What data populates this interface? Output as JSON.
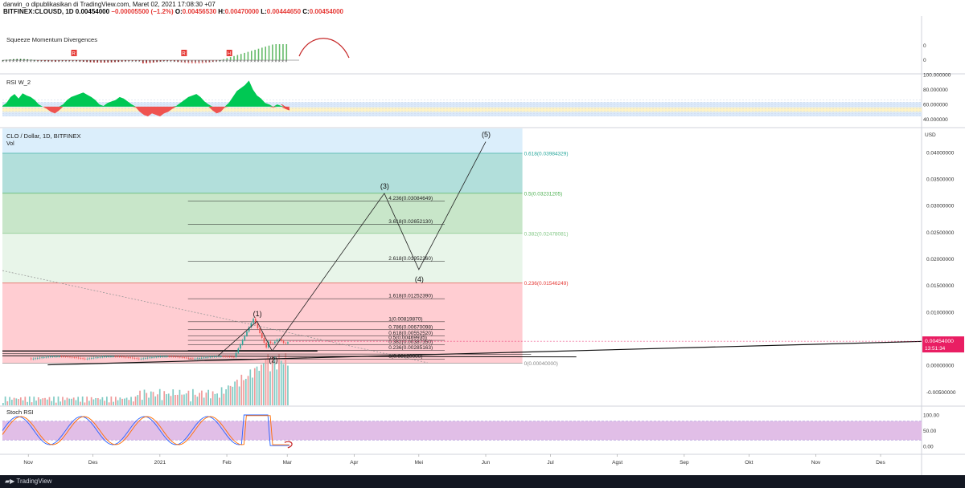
{
  "header": {
    "line1": "darwin_o dipublikasikan di TradingView.com, Maret 02, 2021 17:08:30 +07",
    "symbol": "BITFINEX:CLOUSD, 1D",
    "ohlc": [
      {
        "k": "0.00454000",
        "c": "#000"
      },
      {
        "k": " −0.00005500 (−1.2%)",
        "c": "#e53935"
      },
      {
        "k": " O:",
        "c": "#000"
      },
      {
        "k": "0.00456530",
        "c": "#e53935"
      },
      {
        "k": " H:",
        "c": "#000"
      },
      {
        "k": "0.00470000",
        "c": "#e53935"
      },
      {
        "k": " L:",
        "c": "#000"
      },
      {
        "k": "0.00444650",
        "c": "#e53935"
      },
      {
        "k": " C:",
        "c": "#000"
      },
      {
        "k": "0.00454000",
        "c": "#e53935"
      }
    ]
  },
  "footer": {
    "brand": "TradingView"
  },
  "panes": {
    "squeeze": {
      "title": "Squeeze Momentum Divergences",
      "axis": [
        "0",
        "0"
      ],
      "markers": [
        "R",
        "R",
        "H"
      ]
    },
    "rsi": {
      "title": "RSI W_2",
      "axis": [
        "100.000000",
        "80.000000",
        "60.000000",
        "40.000000"
      ]
    },
    "main": {
      "title": "CLO / Dollar, 1D, BITFINEX",
      "vol": "Vol",
      "currency": "USD",
      "axis": [
        "0.04000000",
        "0.03500000",
        "0.03000000",
        "0.02500000",
        "0.02000000",
        "0.01500000",
        "0.01000000",
        "0.00500000",
        "0.00000000",
        "-0.00500000"
      ],
      "price_label": "0.00454000",
      "countdown": "13:51:34"
    },
    "stoch": {
      "title": "Stoch RSI",
      "axis": [
        "100.00",
        "50.00",
        "0.00"
      ]
    }
  },
  "time_axis": [
    "Nov",
    "Des",
    "2021",
    "Feb",
    "Mar",
    "Apr",
    "Mei",
    "Jun",
    "Jul",
    "Agst",
    "Sep",
    "Okt",
    "Nov",
    "Des"
  ],
  "colors": {
    "up": "#26a69a",
    "down": "#ef5350",
    "fib_blue": "#b2dfdb",
    "fib_green": "#c8e6c9",
    "fib_red": "#ffcdd2",
    "rsi_green": "#00c853",
    "rsi_red": "#ef5350",
    "stoch_band": "#e1bee7",
    "price_tag": "#e91e63"
  },
  "chart_data": {
    "type": "line",
    "symbol": "CLO / Dollar",
    "price_last": 0.00454,
    "ylim": [
      -0.0075,
      0.0445
    ],
    "elliott_waves": [
      {
        "label": "(1)",
        "date": "2021-02-15",
        "price": 0.0083
      },
      {
        "label": "(2)",
        "date": "2021-02-22",
        "price": 0.0027
      },
      {
        "label": "(3)",
        "date": "2021-04-15",
        "price": 0.0323
      },
      {
        "label": "(4)",
        "date": "2021-05-01",
        "price": 0.018
      },
      {
        "label": "(5)",
        "date": "2021-06-01",
        "price": 0.042
      }
    ],
    "fib_extension_levels": [
      {
        "label": "4.236(0.03084649)",
        "value": 0.03084649
      },
      {
        "label": "3.618(0.02652130)",
        "value": 0.0265213
      },
      {
        "label": "2.618(0.01952260)",
        "value": 0.0195226
      },
      {
        "label": "1.618(0.01252390)",
        "value": 0.0125239
      },
      {
        "label": "1(0.00819870)",
        "value": 0.0081987
      },
      {
        "label": "0.786(0.00670098)",
        "value": 0.00670098
      },
      {
        "label": "0.618(0.00552520)",
        "value": 0.0055252
      },
      {
        "label": "0.5(0.00469935)",
        "value": 0.00469935
      },
      {
        "label": "0.382(0.00387350)",
        "value": 0.0038735
      },
      {
        "label": "0.236(0.00285163)",
        "value": 0.00285163
      },
      {
        "label": "0(0.00120000)",
        "value": 0.0012
      }
    ],
    "fib_retracement_levels": [
      {
        "label": "0.618(0.03984329)",
        "value": 0.03984329,
        "color": "#26a69a"
      },
      {
        "label": "0.5(0.03231205)",
        "value": 0.03231205,
        "color": "#4caf50"
      },
      {
        "label": "0.382(0.02478081)",
        "value": 0.02478081,
        "color": "#81c784"
      },
      {
        "label": "0.236(0.01546249)",
        "value": 0.01546249,
        "color": "#e53935"
      },
      {
        "label": "0(0.00040000)",
        "value": 0.0004,
        "color": "#888888"
      }
    ]
  }
}
